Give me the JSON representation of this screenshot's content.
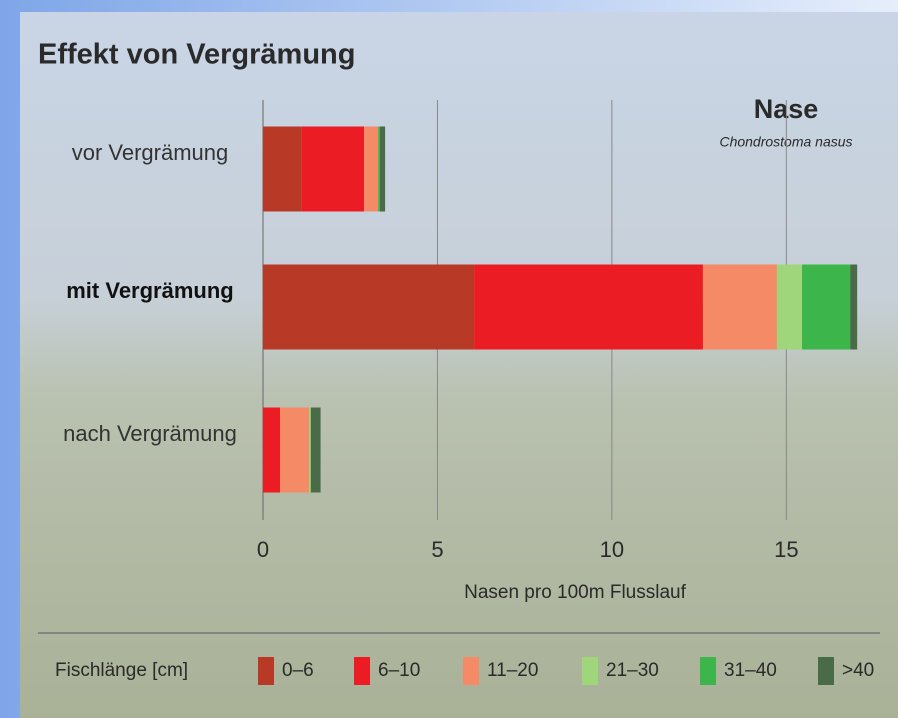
{
  "chart_data": {
    "type": "stacked-barh",
    "title": "Effekt von Vergrämung",
    "annotations": [
      "Nase",
      "Chondrostoma nasus"
    ],
    "categories": [
      "vor Vergrämung",
      "mit Vergrämung",
      "nach Vergrämung"
    ],
    "bold_category_index": 1,
    "series": [
      {
        "name": "0–6",
        "color": "#b83a26",
        "values": [
          1.1,
          6.05,
          0
        ]
      },
      {
        "name": "6–10",
        "color": "#ec1c24",
        "values": [
          1.8,
          6.56,
          0.49
        ]
      },
      {
        "name": "11–20",
        "color": "#f58a67",
        "values": [
          0.4,
          2.12,
          0.83
        ]
      },
      {
        "name": "21–30",
        "color": "#9fd67b",
        "values": [
          0,
          0.72,
          0.05
        ]
      },
      {
        "name": "31–40",
        "color": "#3cb54a",
        "values": [
          0.05,
          1.38,
          0
        ]
      },
      {
        "name": ">40",
        "color": "#4a6b47",
        "values": [
          0.15,
          0.2,
          0.28
        ]
      }
    ],
    "xlabel": "Nasen pro 100m Flusslauf",
    "legend_title": "Fischlänge [cm]",
    "xlim": [
      0,
      18
    ],
    "xticks": [
      0,
      5,
      10,
      15
    ],
    "grid": true
  }
}
